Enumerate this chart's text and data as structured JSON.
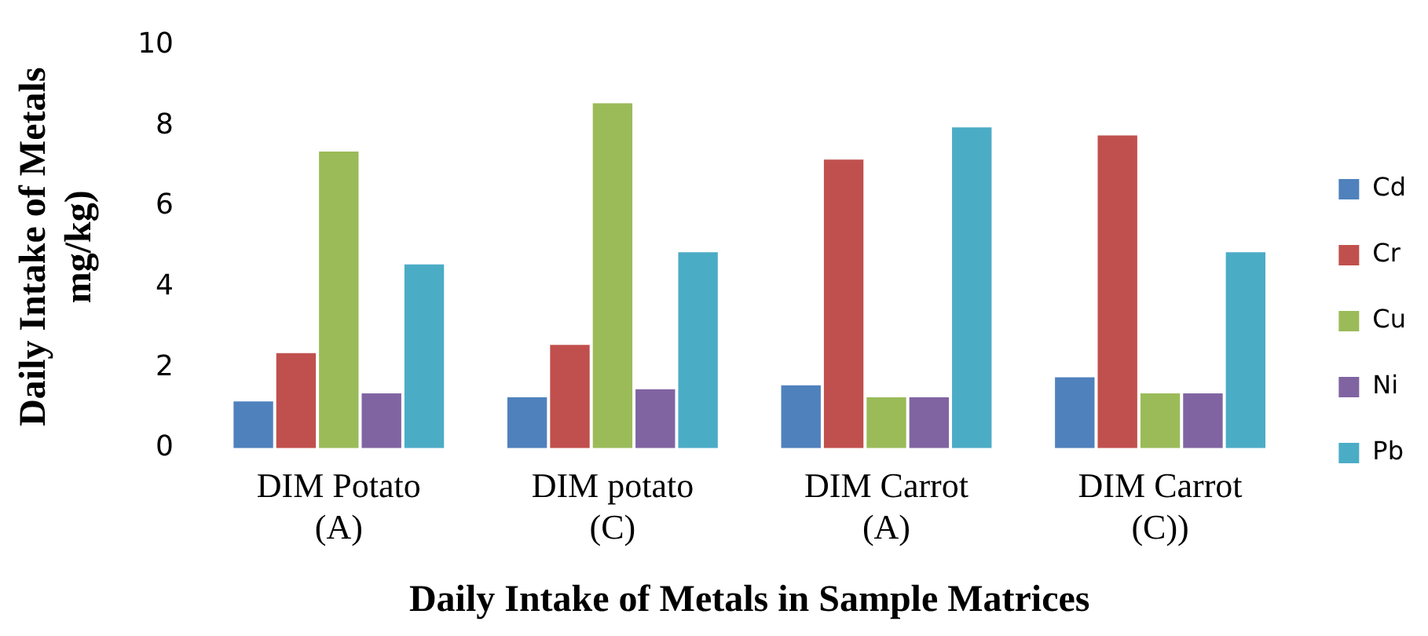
{
  "chart_data": {
    "type": "bar",
    "xlabel": "Daily Intake of Metals in Sample Matrices",
    "ylabel": "Daily Intake of Metals mg/kg)",
    "categories": [
      "DIM Potato (A)",
      "DIM potato (C)",
      "DIM Carrot (A)",
      "DIM Carrot (C))"
    ],
    "series": [
      {
        "name": "Cd",
        "color": "#4f81bd",
        "values": [
          1.2,
          1.3,
          1.6,
          1.8
        ]
      },
      {
        "name": "Cr",
        "color": "#c0504d",
        "values": [
          2.4,
          2.6,
          7.2,
          7.8
        ]
      },
      {
        "name": "Cu",
        "color": "#9bbb59",
        "values": [
          7.4,
          8.6,
          1.3,
          1.4
        ]
      },
      {
        "name": "Ni",
        "color": "#8064a2",
        "values": [
          1.4,
          1.5,
          1.3,
          1.4
        ]
      },
      {
        "name": "Pb",
        "color": "#4bacc6",
        "values": [
          4.6,
          4.9,
          8.0,
          4.9
        ]
      }
    ],
    "ylim": [
      0,
      10
    ],
    "yticks": [
      0,
      2,
      4,
      6,
      8,
      10
    ],
    "grid": false,
    "legend": "right"
  }
}
